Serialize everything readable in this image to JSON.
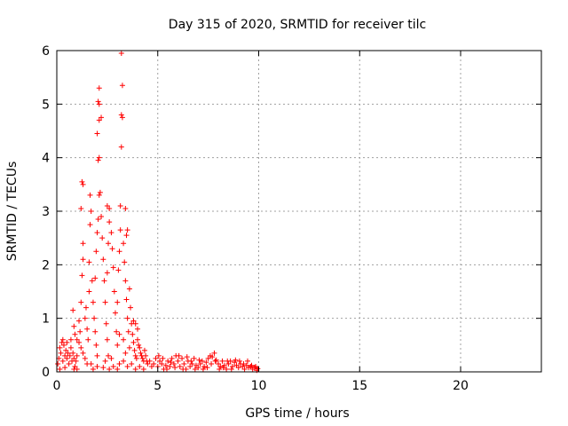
{
  "chart_data": {
    "type": "scatter",
    "title": "Day 315 of 2020, SRMTID for receiver tilc",
    "xlabel": "GPS time / hours",
    "ylabel": "SRMTID / TECUs",
    "xlim": [
      0,
      24
    ],
    "ylim": [
      0,
      6
    ],
    "xticks": [
      0,
      5,
      10,
      15,
      20
    ],
    "yticks": [
      0,
      1,
      2,
      3,
      4,
      5,
      6
    ],
    "grid": true,
    "marker": "plus",
    "color": "#ff0000",
    "series": [
      {
        "points": [
          [
            0.05,
            0.15
          ],
          [
            0.1,
            0.25
          ],
          [
            0.15,
            0.45
          ],
          [
            0.2,
            0.35
          ],
          [
            0.25,
            0.55
          ],
          [
            0.3,
            0.2
          ],
          [
            0.35,
            0.5
          ],
          [
            0.4,
            0.3
          ],
          [
            0.45,
            0.4
          ],
          [
            0.5,
            0.25
          ],
          [
            0.55,
            0.35
          ],
          [
            0.6,
            0.15
          ],
          [
            0.65,
            0.3
          ],
          [
            0.7,
            0.45
          ],
          [
            0.75,
            0.2
          ],
          [
            0.8,
            0.35
          ],
          [
            0.85,
            0.25
          ],
          [
            0.9,
            0.1
          ],
          [
            0.95,
            0.2
          ],
          [
            1.0,
            0.3
          ],
          [
            0.3,
            0.6
          ],
          [
            0.5,
            0.55
          ],
          [
            0.7,
            0.6
          ],
          [
            0.85,
            0.05
          ],
          [
            1.0,
            0.05
          ],
          [
            0.15,
            0.05
          ],
          [
            0.4,
            0.08
          ],
          [
            0.8,
            1.15
          ],
          [
            0.85,
            0.85
          ],
          [
            0.9,
            0.7
          ],
          [
            1.0,
            0.6
          ],
          [
            1.1,
            0.55
          ],
          [
            1.2,
            0.45
          ],
          [
            1.3,
            0.35
          ],
          [
            1.4,
            0.25
          ],
          [
            1.5,
            0.15
          ],
          [
            1.1,
            0.95
          ],
          [
            1.15,
            0.75
          ],
          [
            1.2,
            1.3
          ],
          [
            1.25,
            1.8
          ],
          [
            1.3,
            2.1
          ],
          [
            1.3,
            2.4
          ],
          [
            1.2,
            3.05
          ],
          [
            1.25,
            3.55
          ],
          [
            1.3,
            3.5
          ],
          [
            1.4,
            1.0
          ],
          [
            1.45,
            1.2
          ],
          [
            1.5,
            0.8
          ],
          [
            1.55,
            0.6
          ],
          [
            1.6,
            1.5
          ],
          [
            1.6,
            2.05
          ],
          [
            1.65,
            2.75
          ],
          [
            1.7,
            3.0
          ],
          [
            1.65,
            3.3
          ],
          [
            1.75,
            1.7
          ],
          [
            1.8,
            1.3
          ],
          [
            1.85,
            1.0
          ],
          [
            1.9,
            0.75
          ],
          [
            1.95,
            0.5
          ],
          [
            2.0,
            0.3
          ],
          [
            1.9,
            1.75
          ],
          [
            1.95,
            2.25
          ],
          [
            2.0,
            2.6
          ],
          [
            2.05,
            2.85
          ],
          [
            2.1,
            3.3
          ],
          [
            2.05,
            3.95
          ],
          [
            2.0,
            4.45
          ],
          [
            2.1,
            4.7
          ],
          [
            2.05,
            5.05
          ],
          [
            2.1,
            5.0
          ],
          [
            2.1,
            5.3
          ],
          [
            2.2,
            4.75
          ],
          [
            2.1,
            4.0
          ],
          [
            2.15,
            3.35
          ],
          [
            2.2,
            2.9
          ],
          [
            2.25,
            2.5
          ],
          [
            2.3,
            2.1
          ],
          [
            2.35,
            1.7
          ],
          [
            2.4,
            1.3
          ],
          [
            2.45,
            0.9
          ],
          [
            2.5,
            0.6
          ],
          [
            2.55,
            0.3
          ],
          [
            2.5,
            1.85
          ],
          [
            2.55,
            2.4
          ],
          [
            2.6,
            2.8
          ],
          [
            2.5,
            3.1
          ],
          [
            2.6,
            3.05
          ],
          [
            2.7,
            2.6
          ],
          [
            2.75,
            2.3
          ],
          [
            2.8,
            1.95
          ],
          [
            2.85,
            1.5
          ],
          [
            2.9,
            1.1
          ],
          [
            2.95,
            0.75
          ],
          [
            3.0,
            0.5
          ],
          [
            3.0,
            1.3
          ],
          [
            3.05,
            1.9
          ],
          [
            3.1,
            2.25
          ],
          [
            3.15,
            2.65
          ],
          [
            3.15,
            3.1
          ],
          [
            3.2,
            4.2
          ],
          [
            3.2,
            4.8
          ],
          [
            3.25,
            4.75
          ],
          [
            3.25,
            5.35
          ],
          [
            3.2,
            5.95
          ],
          [
            3.3,
            2.4
          ],
          [
            3.35,
            2.05
          ],
          [
            3.4,
            1.7
          ],
          [
            3.45,
            1.35
          ],
          [
            3.5,
            1.0
          ],
          [
            3.55,
            0.75
          ],
          [
            3.45,
            2.55
          ],
          [
            3.5,
            2.65
          ],
          [
            3.4,
            3.05
          ],
          [
            3.6,
            1.55
          ],
          [
            3.65,
            1.2
          ],
          [
            3.7,
            0.9
          ],
          [
            3.75,
            0.7
          ],
          [
            3.8,
            0.55
          ],
          [
            3.85,
            0.4
          ],
          [
            3.9,
            0.3
          ],
          [
            3.95,
            0.25
          ],
          [
            4.0,
            0.6
          ],
          [
            4.05,
            0.5
          ],
          [
            4.1,
            0.45
          ],
          [
            4.15,
            0.35
          ],
          [
            4.2,
            0.3
          ],
          [
            4.25,
            0.25
          ],
          [
            4.3,
            0.2
          ],
          [
            4.35,
            0.4
          ],
          [
            4.4,
            0.3
          ],
          [
            4.45,
            0.2
          ],
          [
            4.5,
            0.15
          ],
          [
            4.0,
            0.8
          ],
          [
            3.9,
            0.9
          ],
          [
            3.8,
            0.95
          ],
          [
            3.0,
            0.05
          ],
          [
            2.8,
            0.1
          ],
          [
            2.6,
            0.05
          ],
          [
            2.3,
            0.08
          ],
          [
            2.0,
            0.1
          ],
          [
            1.8,
            0.05
          ],
          [
            1.7,
            0.15
          ],
          [
            2.4,
            0.2
          ],
          [
            2.7,
            0.25
          ],
          [
            3.1,
            0.15
          ],
          [
            3.3,
            0.2
          ],
          [
            3.5,
            0.1
          ],
          [
            3.7,
            0.15
          ],
          [
            3.9,
            0.05
          ],
          [
            4.1,
            0.1
          ],
          [
            4.3,
            0.05
          ],
          [
            3.4,
            0.35
          ],
          [
            3.6,
            0.45
          ],
          [
            3.3,
            0.6
          ],
          [
            3.1,
            0.7
          ],
          [
            4.6,
            0.2
          ],
          [
            4.7,
            0.1
          ],
          [
            4.8,
            0.15
          ],
          [
            4.9,
            0.25
          ],
          [
            5.0,
            0.1
          ],
          [
            5.1,
            0.2
          ],
          [
            5.2,
            0.15
          ],
          [
            5.3,
            0.05
          ],
          [
            5.4,
            0.12
          ],
          [
            5.5,
            0.2
          ],
          [
            5.6,
            0.1
          ],
          [
            5.7,
            0.25
          ],
          [
            5.8,
            0.15
          ],
          [
            5.9,
            0.3
          ],
          [
            6.0,
            0.2
          ],
          [
            6.1,
            0.1
          ],
          [
            6.2,
            0.25
          ],
          [
            6.3,
            0.15
          ],
          [
            6.4,
            0.05
          ],
          [
            6.5,
            0.2
          ],
          [
            6.6,
            0.1
          ],
          [
            6.7,
            0.15
          ],
          [
            6.8,
            0.25
          ],
          [
            6.9,
            0.12
          ],
          [
            7.0,
            0.08
          ],
          [
            7.1,
            0.15
          ],
          [
            7.2,
            0.2
          ],
          [
            7.3,
            0.1
          ],
          [
            7.4,
            0.18
          ],
          [
            7.5,
            0.25
          ],
          [
            7.6,
            0.3
          ],
          [
            7.7,
            0.28
          ],
          [
            7.8,
            0.35
          ],
          [
            7.9,
            0.22
          ],
          [
            8.0,
            0.15
          ],
          [
            8.1,
            0.1
          ],
          [
            8.2,
            0.2
          ],
          [
            8.3,
            0.12
          ],
          [
            8.4,
            0.05
          ],
          [
            8.5,
            0.15
          ],
          [
            8.6,
            0.2
          ],
          [
            8.7,
            0.1
          ],
          [
            8.8,
            0.18
          ],
          [
            8.9,
            0.12
          ],
          [
            9.0,
            0.08
          ],
          [
            9.1,
            0.15
          ],
          [
            9.2,
            0.1
          ],
          [
            9.3,
            0.05
          ],
          [
            9.4,
            0.12
          ],
          [
            9.5,
            0.08
          ],
          [
            9.6,
            0.1
          ],
          [
            9.7,
            0.05
          ],
          [
            9.8,
            0.08
          ],
          [
            9.9,
            0.03
          ],
          [
            5.05,
            0.3
          ],
          [
            5.25,
            0.25
          ],
          [
            5.45,
            0.05
          ],
          [
            5.65,
            0.18
          ],
          [
            5.85,
            0.08
          ],
          [
            6.05,
            0.3
          ],
          [
            6.25,
            0.05
          ],
          [
            6.45,
            0.28
          ],
          [
            6.65,
            0.2
          ],
          [
            6.85,
            0.05
          ],
          [
            7.05,
            0.22
          ],
          [
            7.25,
            0.05
          ],
          [
            7.45,
            0.08
          ],
          [
            7.65,
            0.15
          ],
          [
            7.85,
            0.2
          ],
          [
            8.05,
            0.05
          ],
          [
            8.25,
            0.08
          ],
          [
            8.45,
            0.2
          ],
          [
            8.65,
            0.05
          ],
          [
            8.85,
            0.22
          ],
          [
            9.05,
            0.2
          ],
          [
            9.25,
            0.15
          ],
          [
            9.45,
            0.2
          ],
          [
            9.65,
            0.12
          ],
          [
            9.85,
            0.1
          ],
          [
            9.95,
            0.06
          ]
        ]
      }
    ]
  }
}
